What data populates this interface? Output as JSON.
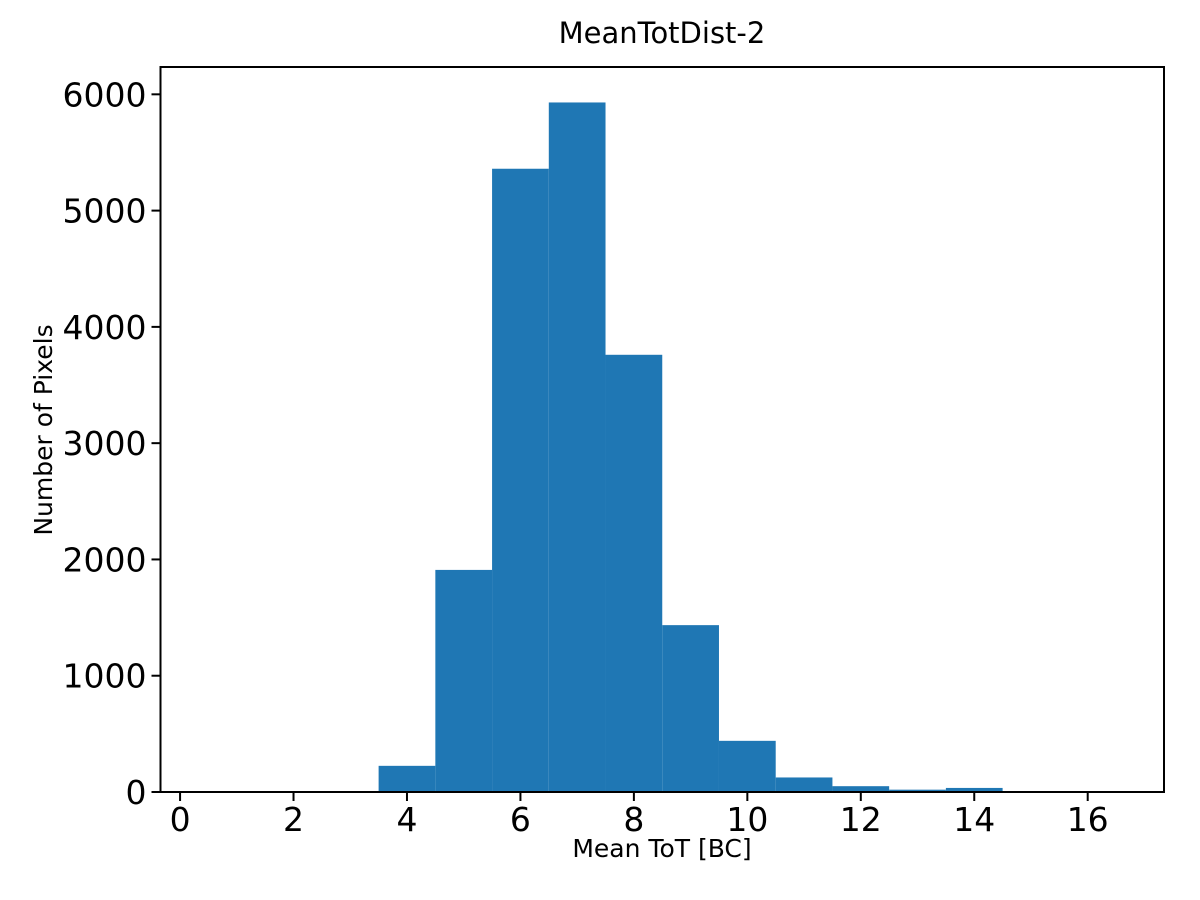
{
  "chart_data": {
    "type": "bar",
    "subtype": "histogram",
    "title": "MeanTotDist-2",
    "xlabel": "Mean ToT [BC]",
    "ylabel": "Number of Pixels",
    "bar_color": "#1f77b4",
    "background_color": "#ffffff",
    "axis_color": "#000000",
    "bin_edges": [
      3.5,
      4.5,
      5.5,
      6.5,
      7.5,
      8.5,
      9.5,
      10.5,
      11.5,
      12.5,
      13.5,
      14.5
    ],
    "values": [
      225,
      1910,
      5360,
      5930,
      3760,
      1435,
      440,
      125,
      50,
      20,
      35
    ],
    "xticks": [
      0,
      2,
      4,
      6,
      8,
      10,
      12,
      14,
      16
    ],
    "yticks": [
      0,
      1000,
      2000,
      3000,
      4000,
      5000,
      6000
    ],
    "xlim": [
      -0.345,
      17.345
    ],
    "ylim": [
      0,
      6235
    ],
    "grid": false,
    "legend_position": "none"
  }
}
